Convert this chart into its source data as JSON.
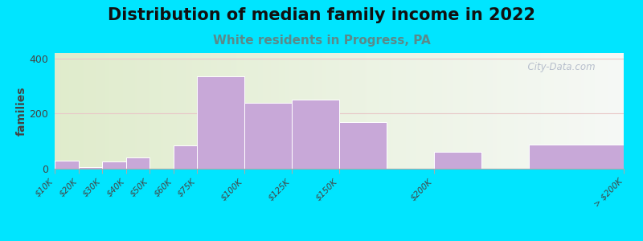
{
  "title": "Distribution of median family income in 2022",
  "subtitle": "White residents in Progress, PA",
  "bar_left_edges": [
    0,
    1,
    2,
    3,
    4,
    5,
    6,
    8,
    10,
    12,
    16,
    20
  ],
  "bar_widths": [
    1,
    1,
    1,
    1,
    1,
    1,
    2,
    2,
    2,
    2,
    2,
    4
  ],
  "values": [
    30,
    5,
    25,
    40,
    0,
    85,
    335,
    238,
    252,
    170,
    60,
    88
  ],
  "tick_positions": [
    0,
    1,
    2,
    3,
    4,
    5,
    6,
    8,
    10,
    12,
    16,
    24
  ],
  "tick_labels": [
    "$10K",
    "$20K",
    "$30K",
    "$40K",
    "$50K",
    "$60K",
    "$75K",
    "$100K",
    "$125K",
    "$150K",
    "$200K",
    "> $200K"
  ],
  "bar_color": "#c8a8d8",
  "bar_edgecolor": "#ffffff",
  "background_outer": "#00e5ff",
  "title_fontsize": 15,
  "subtitle_fontsize": 11,
  "subtitle_color": "#5a8a8a",
  "ylabel": "families",
  "ylabel_fontsize": 10,
  "ylim": [
    0,
    420
  ],
  "yticks": [
    0,
    200,
    400
  ],
  "watermark": "  City-Data.com",
  "watermark_color": "#b0b8c8",
  "grid_color": "#e8c8c8",
  "xlim": [
    0,
    24
  ]
}
